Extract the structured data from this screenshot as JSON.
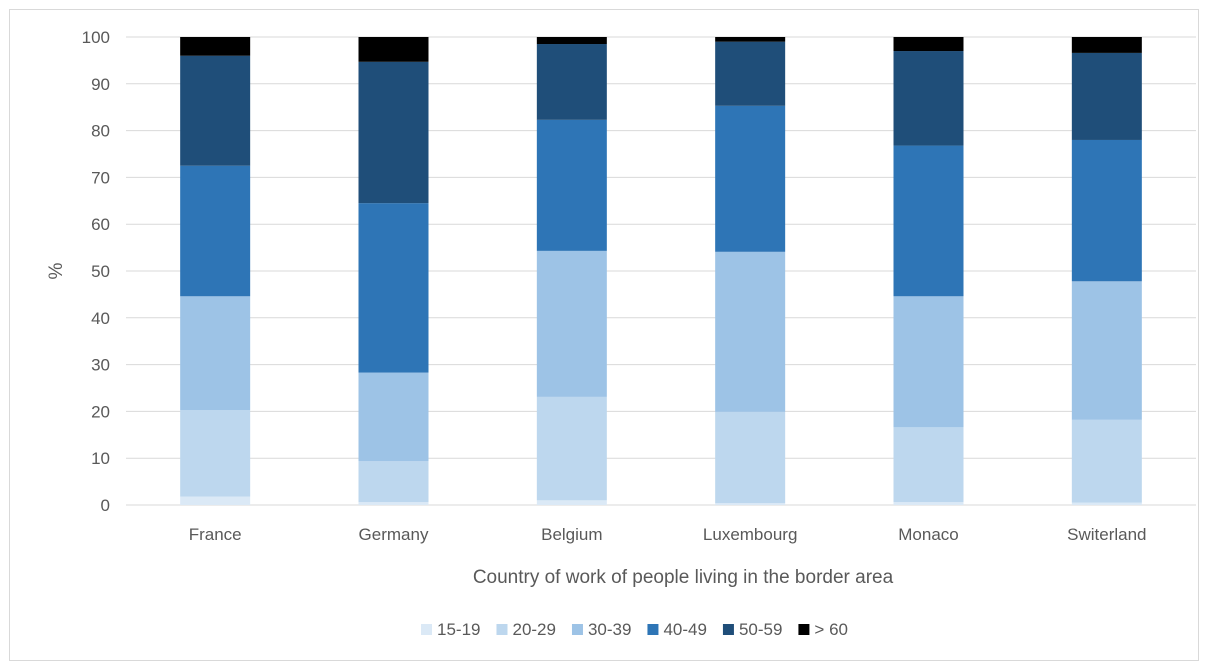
{
  "chart_data": {
    "type": "bar",
    "stacked": true,
    "categories": [
      "France",
      "Germany",
      "Belgium",
      "Luxembourg",
      "Monaco",
      "Switerland"
    ],
    "series": [
      {
        "name": "15-19",
        "color": "#dbe9f6",
        "values": [
          1.8,
          0.6,
          1.0,
          0.4,
          0.6,
          0.5
        ]
      },
      {
        "name": "20-29",
        "color": "#bdd7ee",
        "values": [
          18.5,
          8.8,
          22.1,
          19.5,
          16.0,
          17.7
        ]
      },
      {
        "name": "30-39",
        "color": "#9dc3e6",
        "values": [
          24.3,
          18.9,
          31.2,
          34.2,
          28.0,
          29.6
        ]
      },
      {
        "name": "40-49",
        "color": "#2e75b6",
        "values": [
          27.9,
          36.2,
          28.0,
          31.2,
          32.2,
          30.2
        ]
      },
      {
        "name": "50-59",
        "color": "#1f4e79",
        "values": [
          23.5,
          30.2,
          16.2,
          13.7,
          20.2,
          18.6
        ]
      },
      {
        "name": "> 60",
        "color": "#000000",
        "values": [
          4.0,
          5.3,
          1.5,
          1.0,
          3.0,
          3.4
        ]
      }
    ],
    "xlabel": "Country of work of people living in the border area",
    "ylabel": "%",
    "ylim": [
      0,
      100
    ],
    "yticks": [
      "0",
      "10",
      "20",
      "30",
      "40",
      "50",
      "60",
      "70",
      "80",
      "90",
      "100"
    ],
    "grid": true,
    "legend_position": "bottom"
  }
}
